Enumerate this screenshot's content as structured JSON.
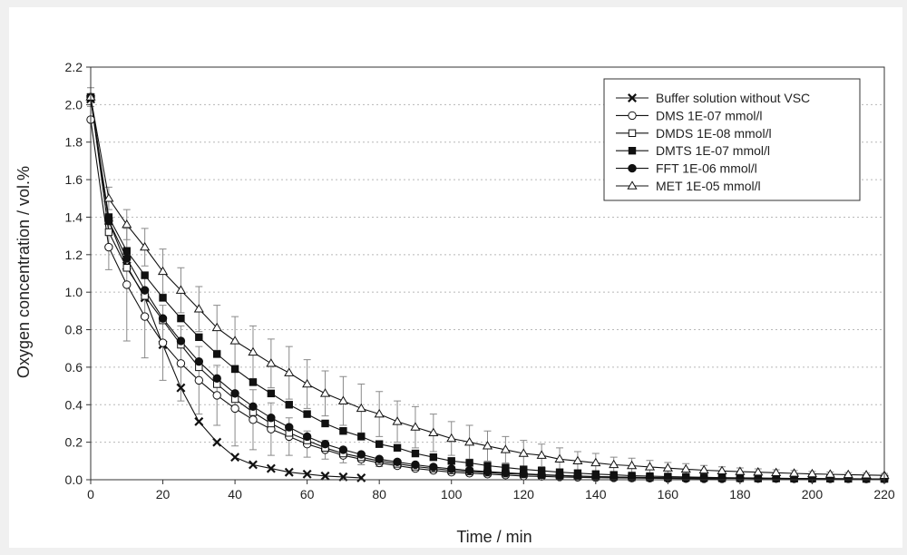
{
  "chart_data": {
    "type": "line",
    "title": "",
    "xlabel": "Time / min",
    "ylabel": "Oxygen concentration / vol.%",
    "xlim": [
      0,
      220
    ],
    "ylim": [
      0,
      2.2
    ],
    "x_ticks": [
      0,
      20,
      40,
      60,
      80,
      100,
      120,
      140,
      160,
      180,
      200,
      220
    ],
    "y_ticks": [
      0.0,
      0.2,
      0.4,
      0.6,
      0.8,
      1.0,
      1.2,
      1.4,
      1.6,
      1.8,
      2.0,
      2.2
    ],
    "y_tick_labels": [
      "0.0",
      "0.2",
      "0.4",
      "0.6",
      "0.8",
      "1.0",
      "1.2",
      "1.4",
      "1.6",
      "1.8",
      "2.0",
      "2.2"
    ],
    "grid": "horizontal dotted",
    "legend_position": "top-right",
    "series": [
      {
        "name": "Buffer solution without VSC",
        "marker": "x",
        "x": [
          0,
          5,
          10,
          15,
          20,
          25,
          30,
          35,
          40,
          45,
          50,
          55,
          60,
          65,
          70,
          75
        ],
        "y": [
          2.03,
          1.38,
          1.14,
          0.97,
          0.72,
          0.49,
          0.31,
          0.2,
          0.12,
          0.08,
          0.06,
          0.04,
          0.03,
          0.02,
          0.015,
          0.01
        ]
      },
      {
        "name": "DMS 1E-07 mmol/l",
        "marker": "open-circle",
        "x": [
          0,
          5,
          10,
          15,
          20,
          25,
          30,
          35,
          40,
          45,
          50,
          55,
          60,
          65,
          70,
          75,
          80,
          85,
          90,
          95,
          100,
          105,
          110,
          115,
          120,
          125,
          130,
          135,
          140,
          145,
          150,
          155,
          160,
          165,
          170,
          175
        ],
        "y": [
          1.92,
          1.24,
          1.04,
          0.87,
          0.73,
          0.62,
          0.53,
          0.45,
          0.38,
          0.32,
          0.27,
          0.23,
          0.19,
          0.16,
          0.13,
          0.11,
          0.09,
          0.075,
          0.06,
          0.05,
          0.04,
          0.035,
          0.03,
          0.025,
          0.02,
          0.018,
          0.015,
          0.013,
          0.011,
          0.01,
          0.009,
          0.008,
          0.007,
          0.006,
          0.005,
          0.005
        ],
        "err": [
          0.0,
          0.12,
          0.3,
          0.22,
          0.2,
          0.2,
          0.18,
          0.16,
          0.2,
          0.16,
          0.14,
          0.1,
          0.07,
          0.05,
          0.04,
          0.03,
          0.02,
          0.015,
          0.012,
          0.01,
          0.01,
          0.01,
          0.008,
          0.008,
          0.006,
          0.006,
          0.005,
          0.005,
          0.005,
          0.005,
          0.004,
          0.004,
          0.004,
          0.004,
          0.004,
          0.004
        ]
      },
      {
        "name": "DMDS 1E-08 mmol/l",
        "marker": "open-square",
        "x": [
          0,
          5,
          10,
          15,
          20,
          25,
          30,
          35,
          40,
          45,
          50,
          55,
          60,
          65,
          70,
          75,
          80,
          85,
          90,
          95,
          100,
          105,
          110,
          115,
          120,
          125,
          130,
          135,
          140,
          145,
          150,
          155,
          160,
          165,
          170,
          175,
          180,
          185,
          190,
          195,
          200,
          205,
          210,
          215,
          220
        ],
        "y": [
          2.04,
          1.32,
          1.13,
          0.98,
          0.85,
          0.72,
          0.6,
          0.51,
          0.43,
          0.36,
          0.3,
          0.25,
          0.21,
          0.17,
          0.14,
          0.12,
          0.1,
          0.085,
          0.07,
          0.06,
          0.05,
          0.044,
          0.038,
          0.033,
          0.029,
          0.025,
          0.022,
          0.019,
          0.017,
          0.015,
          0.013,
          0.012,
          0.011,
          0.01,
          0.009,
          0.008,
          0.008,
          0.007,
          0.007,
          0.006,
          0.006,
          0.006,
          0.005,
          0.005,
          0.005
        ]
      },
      {
        "name": "DMTS 1E-07 mmol/l",
        "marker": "filled-square",
        "x": [
          0,
          5,
          10,
          15,
          20,
          25,
          30,
          35,
          40,
          45,
          50,
          55,
          60,
          65,
          70,
          75,
          80,
          85,
          90,
          95,
          100,
          105,
          110,
          115,
          120,
          125,
          130,
          135,
          140,
          145,
          150,
          155,
          160,
          165,
          170,
          175,
          180,
          185,
          190,
          195,
          200,
          205,
          210,
          215,
          220
        ],
        "y": [
          2.04,
          1.4,
          1.22,
          1.09,
          0.97,
          0.86,
          0.76,
          0.67,
          0.59,
          0.52,
          0.46,
          0.4,
          0.35,
          0.3,
          0.26,
          0.23,
          0.19,
          0.17,
          0.14,
          0.12,
          0.1,
          0.09,
          0.075,
          0.065,
          0.055,
          0.048,
          0.04,
          0.035,
          0.03,
          0.026,
          0.022,
          0.019,
          0.017,
          0.015,
          0.013,
          0.011,
          0.01,
          0.009,
          0.008,
          0.007,
          0.007,
          0.006,
          0.006,
          0.005,
          0.005
        ]
      },
      {
        "name": "FFT 1E-06 mmol/l",
        "marker": "filled-circle",
        "x": [
          0,
          5,
          10,
          15,
          20,
          25,
          30,
          35,
          40,
          45,
          50,
          55,
          60,
          65,
          70,
          75,
          80,
          85,
          90,
          95,
          100,
          105,
          110,
          115,
          120,
          125,
          130,
          135,
          140,
          145,
          150,
          155,
          160,
          165,
          170,
          175,
          180,
          185,
          190,
          195,
          200,
          205,
          210,
          215,
          220
        ],
        "y": [
          2.04,
          1.38,
          1.18,
          1.01,
          0.86,
          0.74,
          0.63,
          0.54,
          0.46,
          0.39,
          0.33,
          0.28,
          0.23,
          0.19,
          0.16,
          0.135,
          0.11,
          0.095,
          0.08,
          0.068,
          0.058,
          0.05,
          0.043,
          0.037,
          0.032,
          0.027,
          0.023,
          0.02,
          0.017,
          0.015,
          0.013,
          0.011,
          0.01,
          0.009,
          0.008,
          0.007,
          0.007,
          0.006,
          0.006,
          0.005,
          0.005,
          0.005,
          0.005,
          0.004,
          0.004
        ]
      },
      {
        "name": "MET 1E-05 mmol/l",
        "marker": "open-triangle",
        "x": [
          0,
          5,
          10,
          15,
          20,
          25,
          30,
          35,
          40,
          45,
          50,
          55,
          60,
          65,
          70,
          75,
          80,
          85,
          90,
          95,
          100,
          105,
          110,
          115,
          120,
          125,
          130,
          135,
          140,
          145,
          150,
          155,
          160,
          165,
          170,
          175,
          180,
          185,
          190,
          195,
          200,
          205,
          210,
          215,
          220
        ],
        "y": [
          2.04,
          1.5,
          1.36,
          1.24,
          1.11,
          1.01,
          0.91,
          0.81,
          0.74,
          0.68,
          0.62,
          0.57,
          0.51,
          0.46,
          0.42,
          0.38,
          0.35,
          0.31,
          0.28,
          0.25,
          0.22,
          0.2,
          0.18,
          0.16,
          0.14,
          0.13,
          0.11,
          0.1,
          0.09,
          0.08,
          0.075,
          0.068,
          0.062,
          0.056,
          0.051,
          0.047,
          0.043,
          0.04,
          0.037,
          0.034,
          0.031,
          0.029,
          0.027,
          0.025,
          0.023
        ],
        "err": [
          0.05,
          0.06,
          0.08,
          0.1,
          0.12,
          0.12,
          0.12,
          0.12,
          0.13,
          0.14,
          0.13,
          0.14,
          0.13,
          0.12,
          0.13,
          0.13,
          0.12,
          0.11,
          0.11,
          0.1,
          0.09,
          0.09,
          0.08,
          0.07,
          0.07,
          0.06,
          0.06,
          0.05,
          0.05,
          0.04,
          0.04,
          0.035,
          0.03,
          0.03,
          0.025,
          0.022,
          0.02,
          0.018,
          0.016,
          0.015,
          0.013,
          0.012,
          0.011,
          0.01,
          0.01
        ]
      }
    ]
  }
}
